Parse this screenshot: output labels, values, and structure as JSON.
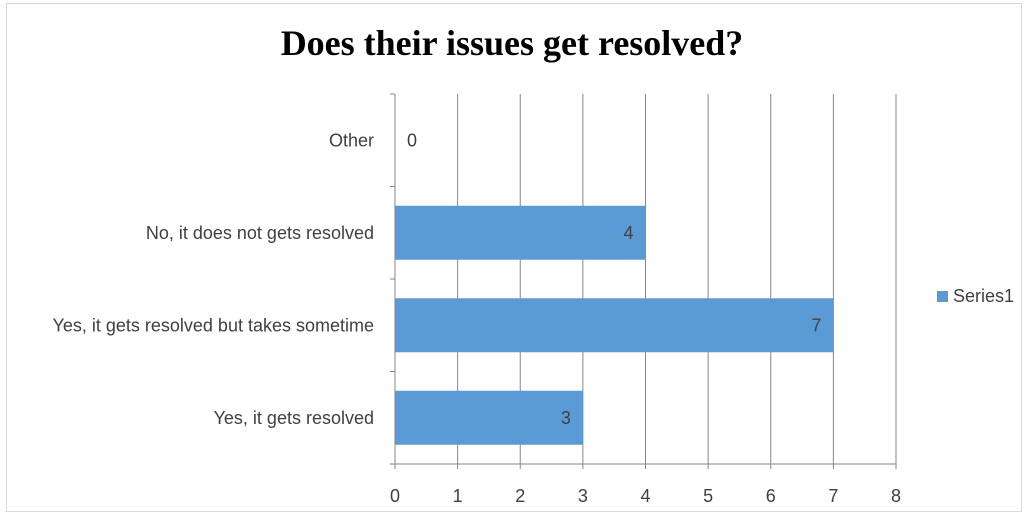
{
  "chart_data": {
    "type": "bar",
    "orientation": "horizontal",
    "title": "Does their issues get resolved?",
    "categories": [
      "Yes, it gets resolved",
      "Yes, it gets resolved but takes sometime",
      "No, it does not gets resolved",
      "Other"
    ],
    "series": [
      {
        "name": "Series1",
        "values": [
          3,
          7,
          4,
          0
        ],
        "color": "#5b9bd5"
      }
    ],
    "data_labels": [
      "3",
      "7",
      "4",
      "0"
    ],
    "xlim": [
      0,
      8
    ],
    "x_ticks": [
      "0",
      "1",
      "2",
      "3",
      "4",
      "5",
      "6",
      "7",
      "8"
    ],
    "grid": true,
    "legend": {
      "position": "right",
      "label": "Series1"
    }
  }
}
